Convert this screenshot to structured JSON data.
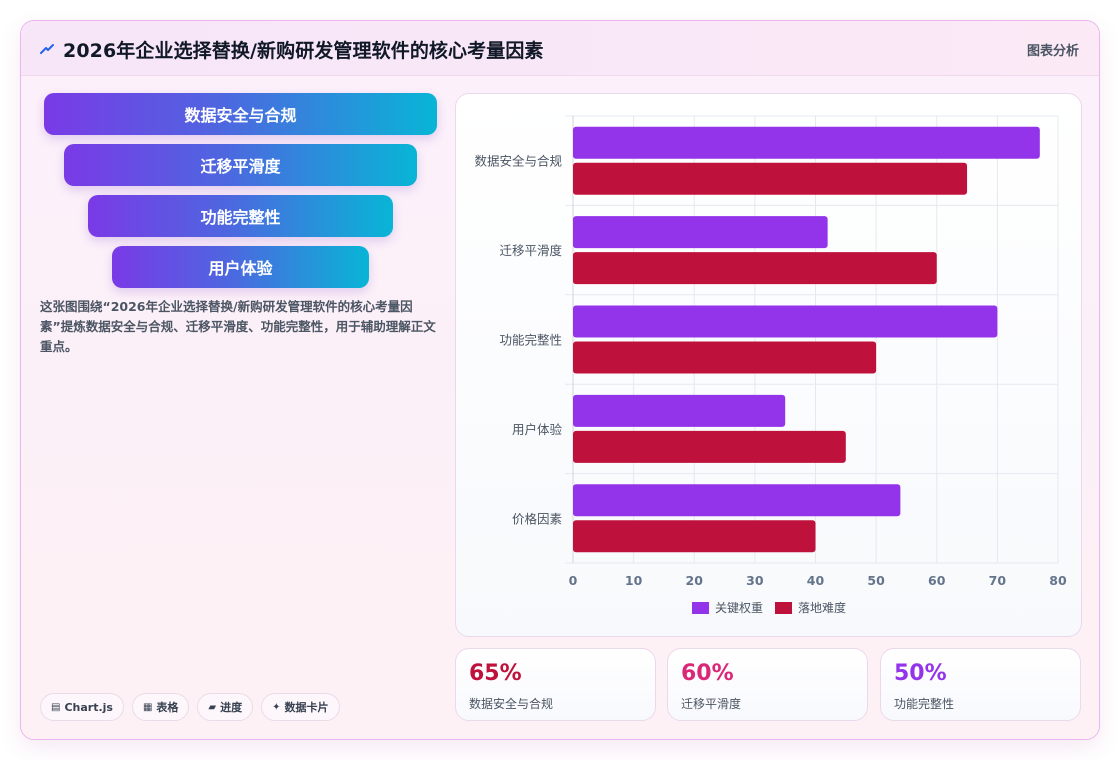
{
  "header": {
    "title": "2026年企业选择替换/新购研发管理软件的核心考量因素",
    "tag": "图表分析",
    "icon": "sparkle-arrow-icon"
  },
  "funnel": {
    "steps": [
      "数据安全与合规",
      "迁移平滑度",
      "功能完整性",
      "用户体验"
    ]
  },
  "description": "这张图围绕“2026年企业选择替换/新购研发管理软件的核心考量因素”提炼数据安全与合规、迁移平滑度、功能完整性，用于辅助理解正文重点。",
  "chips": [
    {
      "icon": "chart-icon",
      "glyph": "▤",
      "label": "Chart.js"
    },
    {
      "icon": "table-icon",
      "glyph": "▦",
      "label": "表格"
    },
    {
      "icon": "progress-icon",
      "glyph": "▰",
      "label": "进度"
    },
    {
      "icon": "card-icon",
      "glyph": "✦",
      "label": "数据卡片"
    }
  ],
  "chart_data": {
    "type": "bar",
    "orientation": "horizontal",
    "categories": [
      "数据安全与合规",
      "迁移平滑度",
      "功能完整性",
      "用户体验",
      "价格因素"
    ],
    "series": [
      {
        "name": "关键权重",
        "color": "#9333ea",
        "values": [
          77,
          42,
          70,
          35,
          54
        ]
      },
      {
        "name": "落地难度",
        "color": "#be123c",
        "values": [
          65,
          60,
          50,
          45,
          40
        ]
      }
    ],
    "xlim": [
      0,
      80
    ],
    "xticks": [
      0,
      10,
      20,
      30,
      40,
      50,
      60,
      70,
      80
    ],
    "grid": true,
    "legend_position": "bottom"
  },
  "stats": [
    {
      "value": "65%",
      "label": "数据安全与合规",
      "color": "#be123c"
    },
    {
      "value": "60%",
      "label": "迁移平滑度",
      "color": "#db2777"
    },
    {
      "value": "50%",
      "label": "功能完整性",
      "color": "#9333ea"
    }
  ]
}
